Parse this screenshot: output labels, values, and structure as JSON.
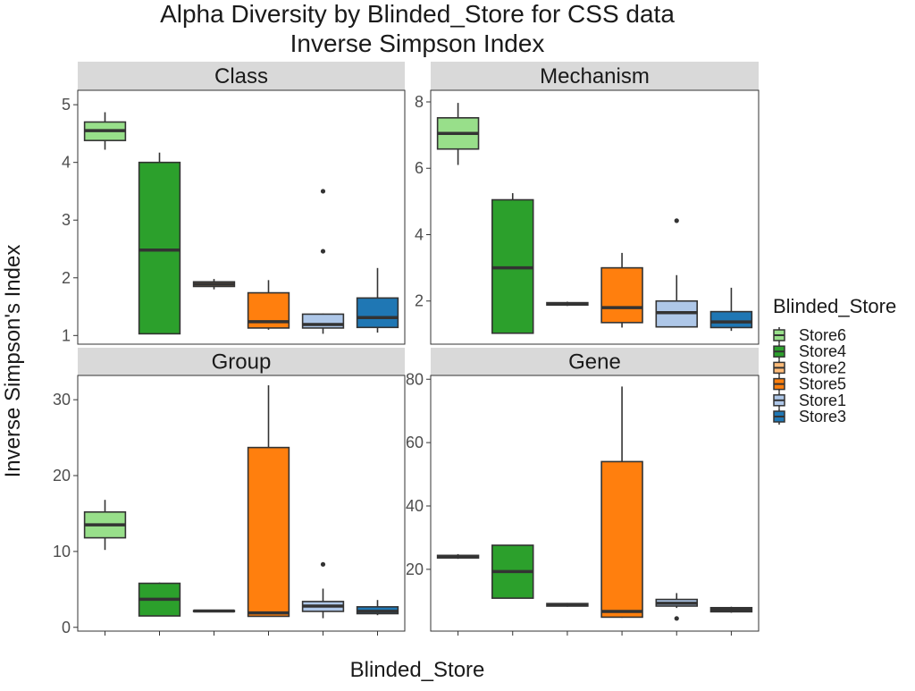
{
  "chart_data": {
    "type": "boxplot",
    "title": "Alpha Diversity by Blinded_Store for CSS data",
    "subtitle": "Inverse Simpson Index",
    "xlabel": "Blinded_Store",
    "ylabel": "Inverse Simpson's Index",
    "legend": {
      "title": "Blinded_Store",
      "position": "right",
      "entries": [
        {
          "name": "Store6",
          "color": "#98df8a"
        },
        {
          "name": "Store4",
          "color": "#2ca02c"
        },
        {
          "name": "Store2",
          "color": "#ffbb78"
        },
        {
          "name": "Store5",
          "color": "#ff7f0e"
        },
        {
          "name": "Store1",
          "color": "#aec7e8"
        },
        {
          "name": "Store3",
          "color": "#1f77b4"
        }
      ]
    },
    "categories": [
      "Store6",
      "Store4",
      "Store2",
      "Store5",
      "Store1",
      "Store3"
    ],
    "grid": false,
    "panels": [
      {
        "facet": "Class",
        "ylim": [
          0.85,
          5.25
        ],
        "yticks": [
          1,
          2,
          3,
          4,
          5
        ],
        "boxes": [
          {
            "store": "Store6",
            "min": 4.22,
            "q1": 4.38,
            "median": 4.55,
            "q3": 4.7,
            "max": 4.87,
            "outliers": []
          },
          {
            "store": "Store4",
            "min": 1.03,
            "q1": 1.03,
            "median": 2.48,
            "q3": 4.0,
            "max": 4.17,
            "outliers": []
          },
          {
            "store": "Store2",
            "min": 1.8,
            "q1": 1.85,
            "median": 1.89,
            "q3": 1.93,
            "max": 1.98,
            "outliers": []
          },
          {
            "store": "Store5",
            "min": 1.1,
            "q1": 1.13,
            "median": 1.24,
            "q3": 1.74,
            "max": 1.96,
            "outliers": []
          },
          {
            "store": "Store1",
            "min": 1.03,
            "q1": 1.13,
            "median": 1.19,
            "q3": 1.37,
            "max": 1.38,
            "outliers": [
              2.46,
              3.5
            ]
          },
          {
            "store": "Store3",
            "min": 1.05,
            "q1": 1.14,
            "median": 1.31,
            "q3": 1.65,
            "max": 2.17,
            "outliers": []
          }
        ]
      },
      {
        "facet": "Mechanism",
        "ylim": [
          0.7,
          8.35
        ],
        "yticks": [
          2,
          4,
          6,
          8
        ],
        "boxes": [
          {
            "store": "Store6",
            "min": 6.1,
            "q1": 6.58,
            "median": 7.05,
            "q3": 7.52,
            "max": 7.97,
            "outliers": []
          },
          {
            "store": "Store4",
            "min": 1.03,
            "q1": 1.03,
            "median": 3.0,
            "q3": 5.05,
            "max": 5.25,
            "outliers": []
          },
          {
            "store": "Store2",
            "min": 1.85,
            "q1": 1.88,
            "median": 1.92,
            "q3": 1.95,
            "max": 1.98,
            "outliers": []
          },
          {
            "store": "Store5",
            "min": 1.2,
            "q1": 1.35,
            "median": 1.8,
            "q3": 3.0,
            "max": 3.45,
            "outliers": []
          },
          {
            "store": "Store1",
            "min": 1.2,
            "q1": 1.22,
            "median": 1.65,
            "q3": 2.0,
            "max": 2.78,
            "outliers": [
              4.42
            ]
          },
          {
            "store": "Store3",
            "min": 1.1,
            "q1": 1.2,
            "median": 1.37,
            "q3": 1.68,
            "max": 2.4,
            "outliers": []
          }
        ]
      },
      {
        "facet": "Group",
        "ylim": [
          -0.5,
          33.2
        ],
        "yticks": [
          0,
          10,
          20,
          30
        ],
        "boxes": [
          {
            "store": "Store6",
            "min": 10.2,
            "q1": 11.8,
            "median": 13.5,
            "q3": 15.2,
            "max": 16.8,
            "outliers": []
          },
          {
            "store": "Store4",
            "min": 1.5,
            "q1": 1.5,
            "median": 3.7,
            "q3": 5.8,
            "max": 5.9,
            "outliers": []
          },
          {
            "store": "Store2",
            "min": 2.05,
            "q1": 2.1,
            "median": 2.15,
            "q3": 2.2,
            "max": 2.25,
            "outliers": []
          },
          {
            "store": "Store5",
            "min": 1.4,
            "q1": 1.45,
            "median": 1.9,
            "q3": 23.7,
            "max": 31.9,
            "outliers": []
          },
          {
            "store": "Store1",
            "min": 1.2,
            "q1": 2.1,
            "median": 2.8,
            "q3": 3.4,
            "max": 5.1,
            "outliers": [
              8.3
            ]
          },
          {
            "store": "Store3",
            "min": 1.6,
            "q1": 1.8,
            "median": 2.1,
            "q3": 2.7,
            "max": 3.6,
            "outliers": []
          }
        ]
      },
      {
        "facet": "Gene",
        "ylim": [
          0.5,
          81.2
        ],
        "yticks": [
          20,
          40,
          60,
          80
        ],
        "boxes": [
          {
            "store": "Store6",
            "min": 23.3,
            "q1": 23.6,
            "median": 24.0,
            "q3": 24.4,
            "max": 24.8,
            "outliers": []
          },
          {
            "store": "Store4",
            "min": 10.9,
            "q1": 10.9,
            "median": 19.3,
            "q3": 27.6,
            "max": 27.6,
            "outliers": []
          },
          {
            "store": "Store2",
            "min": 8.2,
            "q1": 8.4,
            "median": 8.8,
            "q3": 9.2,
            "max": 9.4,
            "outliers": []
          },
          {
            "store": "Store5",
            "min": 4.7,
            "q1": 4.9,
            "median": 6.7,
            "q3": 54.0,
            "max": 77.7,
            "outliers": []
          },
          {
            "store": "Store1",
            "min": 7.8,
            "q1": 8.4,
            "median": 9.3,
            "q3": 10.5,
            "max": 12.5,
            "outliers": [
              4.5
            ]
          },
          {
            "store": "Store3",
            "min": 6.3,
            "q1": 6.6,
            "median": 7.2,
            "q3": 7.9,
            "max": 8.2,
            "outliers": []
          }
        ]
      }
    ]
  }
}
